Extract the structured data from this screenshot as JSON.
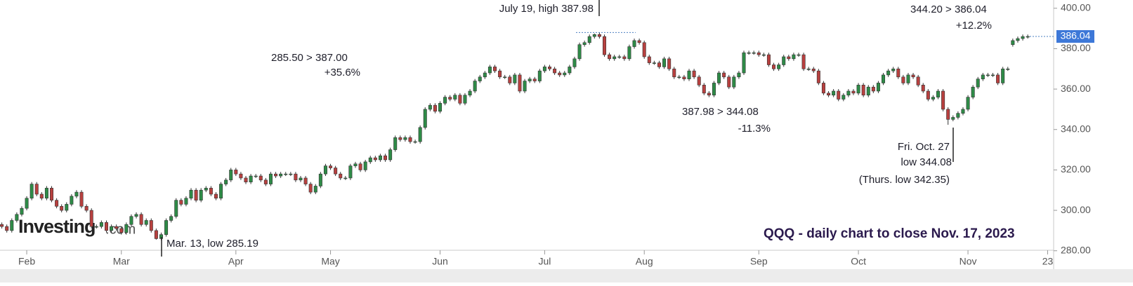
{
  "chart_data": {
    "type": "candlestick",
    "title": "QQQ - daily chart to close Nov. 17, 2023",
    "logo": "Investing",
    "logo_suffix": ".com",
    "up_color": "#2e8b47",
    "down_color": "#b8403f",
    "ylim": [
      278,
      402
    ],
    "yticks": [
      {
        "value": 280,
        "label": "280.00"
      },
      {
        "value": 300,
        "label": "300.00"
      },
      {
        "value": 320,
        "label": "320.00"
      },
      {
        "value": 340,
        "label": "340.00"
      },
      {
        "value": 360,
        "label": "360.00"
      },
      {
        "value": 380,
        "label": "380.00"
      },
      {
        "value": 400,
        "label": "400.00"
      }
    ],
    "xticks": [
      {
        "value": 5,
        "label": "Feb"
      },
      {
        "value": 24,
        "label": "Mar"
      },
      {
        "value": 47,
        "label": "Apr"
      },
      {
        "value": 66,
        "label": "May"
      },
      {
        "value": 88,
        "label": "Jun"
      },
      {
        "value": 109,
        "label": "Jul"
      },
      {
        "value": 129,
        "label": "Aug"
      },
      {
        "value": 152,
        "label": "Sep"
      },
      {
        "value": 172,
        "label": "Oct"
      },
      {
        "value": 194,
        "label": "Nov"
      },
      {
        "value": 210,
        "label": "23"
      }
    ],
    "annotations": [
      "July 19, high 387.98",
      "285.50 > 387.00",
      "+35.6%",
      "387.98 > 344.08",
      "-11.3%",
      "344.20 > 386.04",
      "+12.2%",
      "Fri. Oct. 27",
      "low 344.08",
      "(Thurs. low 342.35)",
      "Mar. 13, low 285.19"
    ],
    "close": [
      292,
      290,
      295,
      298,
      301,
      306,
      313,
      308,
      306,
      311,
      305,
      302,
      300,
      303,
      307,
      309,
      302,
      300,
      292,
      292,
      294,
      290,
      292,
      291,
      289,
      293,
      297,
      298,
      293,
      295,
      290,
      286,
      288,
      295,
      297,
      305,
      303,
      306,
      310,
      305,
      310,
      311,
      308,
      306,
      313,
      315,
      320,
      318,
      316,
      314,
      317,
      317,
      315,
      313,
      318,
      317,
      318,
      318,
      318,
      315,
      316,
      313,
      309,
      312,
      318,
      322,
      321,
      318,
      316,
      316,
      322,
      323,
      320,
      324,
      326,
      325,
      327,
      325,
      330,
      336,
      335,
      336,
      334,
      334,
      341,
      350,
      352,
      349,
      353,
      356,
      355,
      357,
      353,
      357,
      359,
      364,
      366,
      368,
      371,
      369,
      366,
      366,
      363,
      367,
      359,
      364,
      365,
      364,
      369,
      371,
      370,
      368,
      367,
      368,
      371,
      375,
      382,
      383,
      386,
      387,
      386,
      377,
      375,
      376,
      376,
      375,
      381,
      384,
      383,
      376,
      373,
      373,
      371,
      375,
      370,
      366,
      366,
      365,
      369,
      366,
      362,
      358,
      357,
      363,
      368,
      366,
      361,
      366,
      368,
      378,
      378,
      378,
      377,
      377,
      372,
      370,
      372,
      376,
      375,
      377,
      377,
      370,
      370,
      369,
      363,
      358,
      357,
      359,
      355,
      357,
      359,
      358,
      362,
      357,
      361,
      359,
      363,
      367,
      369,
      370,
      366,
      363,
      367,
      366,
      362,
      359,
      355,
      356,
      359,
      350,
      345,
      346,
      348,
      350,
      356,
      361,
      365,
      367,
      367,
      367,
      363,
      370,
      370,
      384,
      385,
      386,
      386.04
    ],
    "open": [
      293,
      292,
      290,
      295,
      298,
      301,
      306,
      313,
      308,
      306,
      311,
      305,
      302,
      300,
      303,
      307,
      309,
      302,
      300,
      292,
      292,
      294,
      290,
      292,
      291,
      289,
      293,
      297,
      298,
      293,
      295,
      290,
      286,
      288,
      295,
      297,
      305,
      303,
      306,
      310,
      305,
      310,
      311,
      308,
      306,
      313,
      315,
      320,
      318,
      316,
      314,
      317,
      317,
      315,
      313,
      318,
      317,
      318,
      318,
      318,
      315,
      316,
      313,
      309,
      312,
      318,
      322,
      321,
      318,
      316,
      316,
      322,
      323,
      320,
      324,
      326,
      325,
      327,
      325,
      330,
      336,
      335,
      336,
      334,
      334,
      341,
      350,
      352,
      349,
      353,
      356,
      355,
      357,
      353,
      357,
      359,
      364,
      366,
      368,
      371,
      369,
      366,
      366,
      363,
      367,
      359,
      364,
      365,
      364,
      369,
      371,
      370,
      368,
      367,
      368,
      371,
      375,
      382,
      383,
      386,
      387,
      386,
      377,
      375,
      376,
      376,
      375,
      381,
      384,
      383,
      376,
      373,
      373,
      371,
      375,
      370,
      366,
      366,
      365,
      369,
      366,
      362,
      358,
      357,
      363,
      368,
      366,
      361,
      366,
      368,
      378,
      378,
      378,
      377,
      377,
      372,
      370,
      372,
      376,
      375,
      377,
      377,
      370,
      370,
      369,
      363,
      358,
      357,
      359,
      355,
      357,
      359,
      358,
      362,
      357,
      361,
      359,
      363,
      367,
      369,
      370,
      366,
      363,
      367,
      366,
      362,
      359,
      355,
      356,
      359,
      350,
      345,
      346,
      348,
      350,
      356,
      361,
      365,
      367,
      367,
      367,
      363,
      370,
      382,
      384,
      385,
      386
    ],
    "high": [
      294,
      293,
      296,
      299,
      302,
      307,
      314,
      314,
      309,
      312,
      312,
      306,
      303,
      304,
      308,
      310,
      310,
      303,
      301,
      293,
      295,
      295,
      293,
      293,
      292,
      294,
      298,
      299,
      299,
      296,
      296,
      291,
      289,
      296,
      298,
      306,
      306,
      307,
      311,
      311,
      311,
      312,
      312,
      309,
      314,
      316,
      321,
      321,
      319,
      317,
      318,
      318,
      318,
      316,
      319,
      319,
      319,
      319,
      319,
      319,
      317,
      317,
      314,
      313,
      319,
      323,
      323,
      322,
      319,
      317,
      323,
      324,
      324,
      325,
      327,
      327,
      328,
      328,
      331,
      337,
      337,
      337,
      337,
      335,
      342,
      351,
      353,
      353,
      354,
      357,
      357,
      358,
      358,
      358,
      360,
      365,
      367,
      369,
      372,
      372,
      370,
      367,
      367,
      368,
      368,
      365,
      366,
      366,
      370,
      372,
      372,
      371,
      369,
      369,
      372,
      376,
      383,
      384,
      387,
      387.5,
      387.98,
      387,
      378,
      377,
      377,
      377,
      382,
      385,
      385,
      384,
      377,
      374,
      374,
      376,
      376,
      371,
      367,
      367,
      370,
      370,
      367,
      363,
      359,
      364,
      369,
      369,
      367,
      367,
      369,
      379,
      379,
      379,
      379,
      378,
      378,
      373,
      373,
      377,
      377,
      378,
      378,
      378,
      371,
      371,
      370,
      364,
      359,
      360,
      360,
      358,
      360,
      360,
      363,
      363,
      362,
      362,
      364,
      368,
      370,
      371,
      371,
      367,
      368,
      368,
      367,
      363,
      360,
      357,
      360,
      360,
      351,
      347,
      349,
      351,
      357,
      362,
      366,
      368,
      368,
      368,
      368,
      371,
      371,
      385,
      386,
      387,
      387
    ],
    "low": [
      291,
      289,
      289,
      294,
      297,
      300,
      305,
      307,
      305,
      305,
      304,
      301,
      299,
      299,
      302,
      306,
      301,
      299,
      291,
      291,
      291,
      289,
      289,
      290,
      288,
      288,
      292,
      296,
      292,
      292,
      289,
      285.5,
      285.19,
      287,
      294,
      296,
      302,
      302,
      305,
      304,
      304,
      309,
      307,
      305,
      305,
      312,
      314,
      317,
      315,
      313,
      313,
      316,
      314,
      312,
      312,
      316,
      316,
      317,
      317,
      314,
      314,
      312,
      308,
      308,
      311,
      317,
      320,
      317,
      315,
      315,
      315,
      321,
      319,
      319,
      323,
      324,
      324,
      324,
      324,
      329,
      334,
      334,
      333,
      333,
      333,
      340,
      349,
      348,
      348,
      352,
      354,
      354,
      352,
      352,
      356,
      358,
      363,
      365,
      367,
      368,
      365,
      365,
      362,
      362,
      358,
      358,
      363,
      363,
      363,
      368,
      369,
      367,
      366,
      366,
      367,
      370,
      374,
      381,
      382,
      385,
      385,
      376,
      374,
      374,
      375,
      374,
      374,
      380,
      382,
      375,
      372,
      372,
      370,
      370,
      369,
      365,
      365,
      364,
      364,
      365,
      361,
      357,
      356,
      356,
      362,
      365,
      360,
      360,
      365,
      367,
      377,
      377,
      376,
      376,
      371,
      369,
      369,
      371,
      374,
      374,
      376,
      369,
      369,
      368,
      362,
      357,
      356,
      356,
      354,
      354,
      356,
      357,
      357,
      356,
      356,
      358,
      358,
      362,
      366,
      368,
      365,
      362,
      362,
      365,
      361,
      358,
      354,
      354,
      355,
      349,
      342.35,
      344.08,
      345,
      347,
      349,
      355,
      360,
      364,
      366,
      366,
      362,
      362,
      369,
      381,
      383,
      384,
      385
    ]
  }
}
